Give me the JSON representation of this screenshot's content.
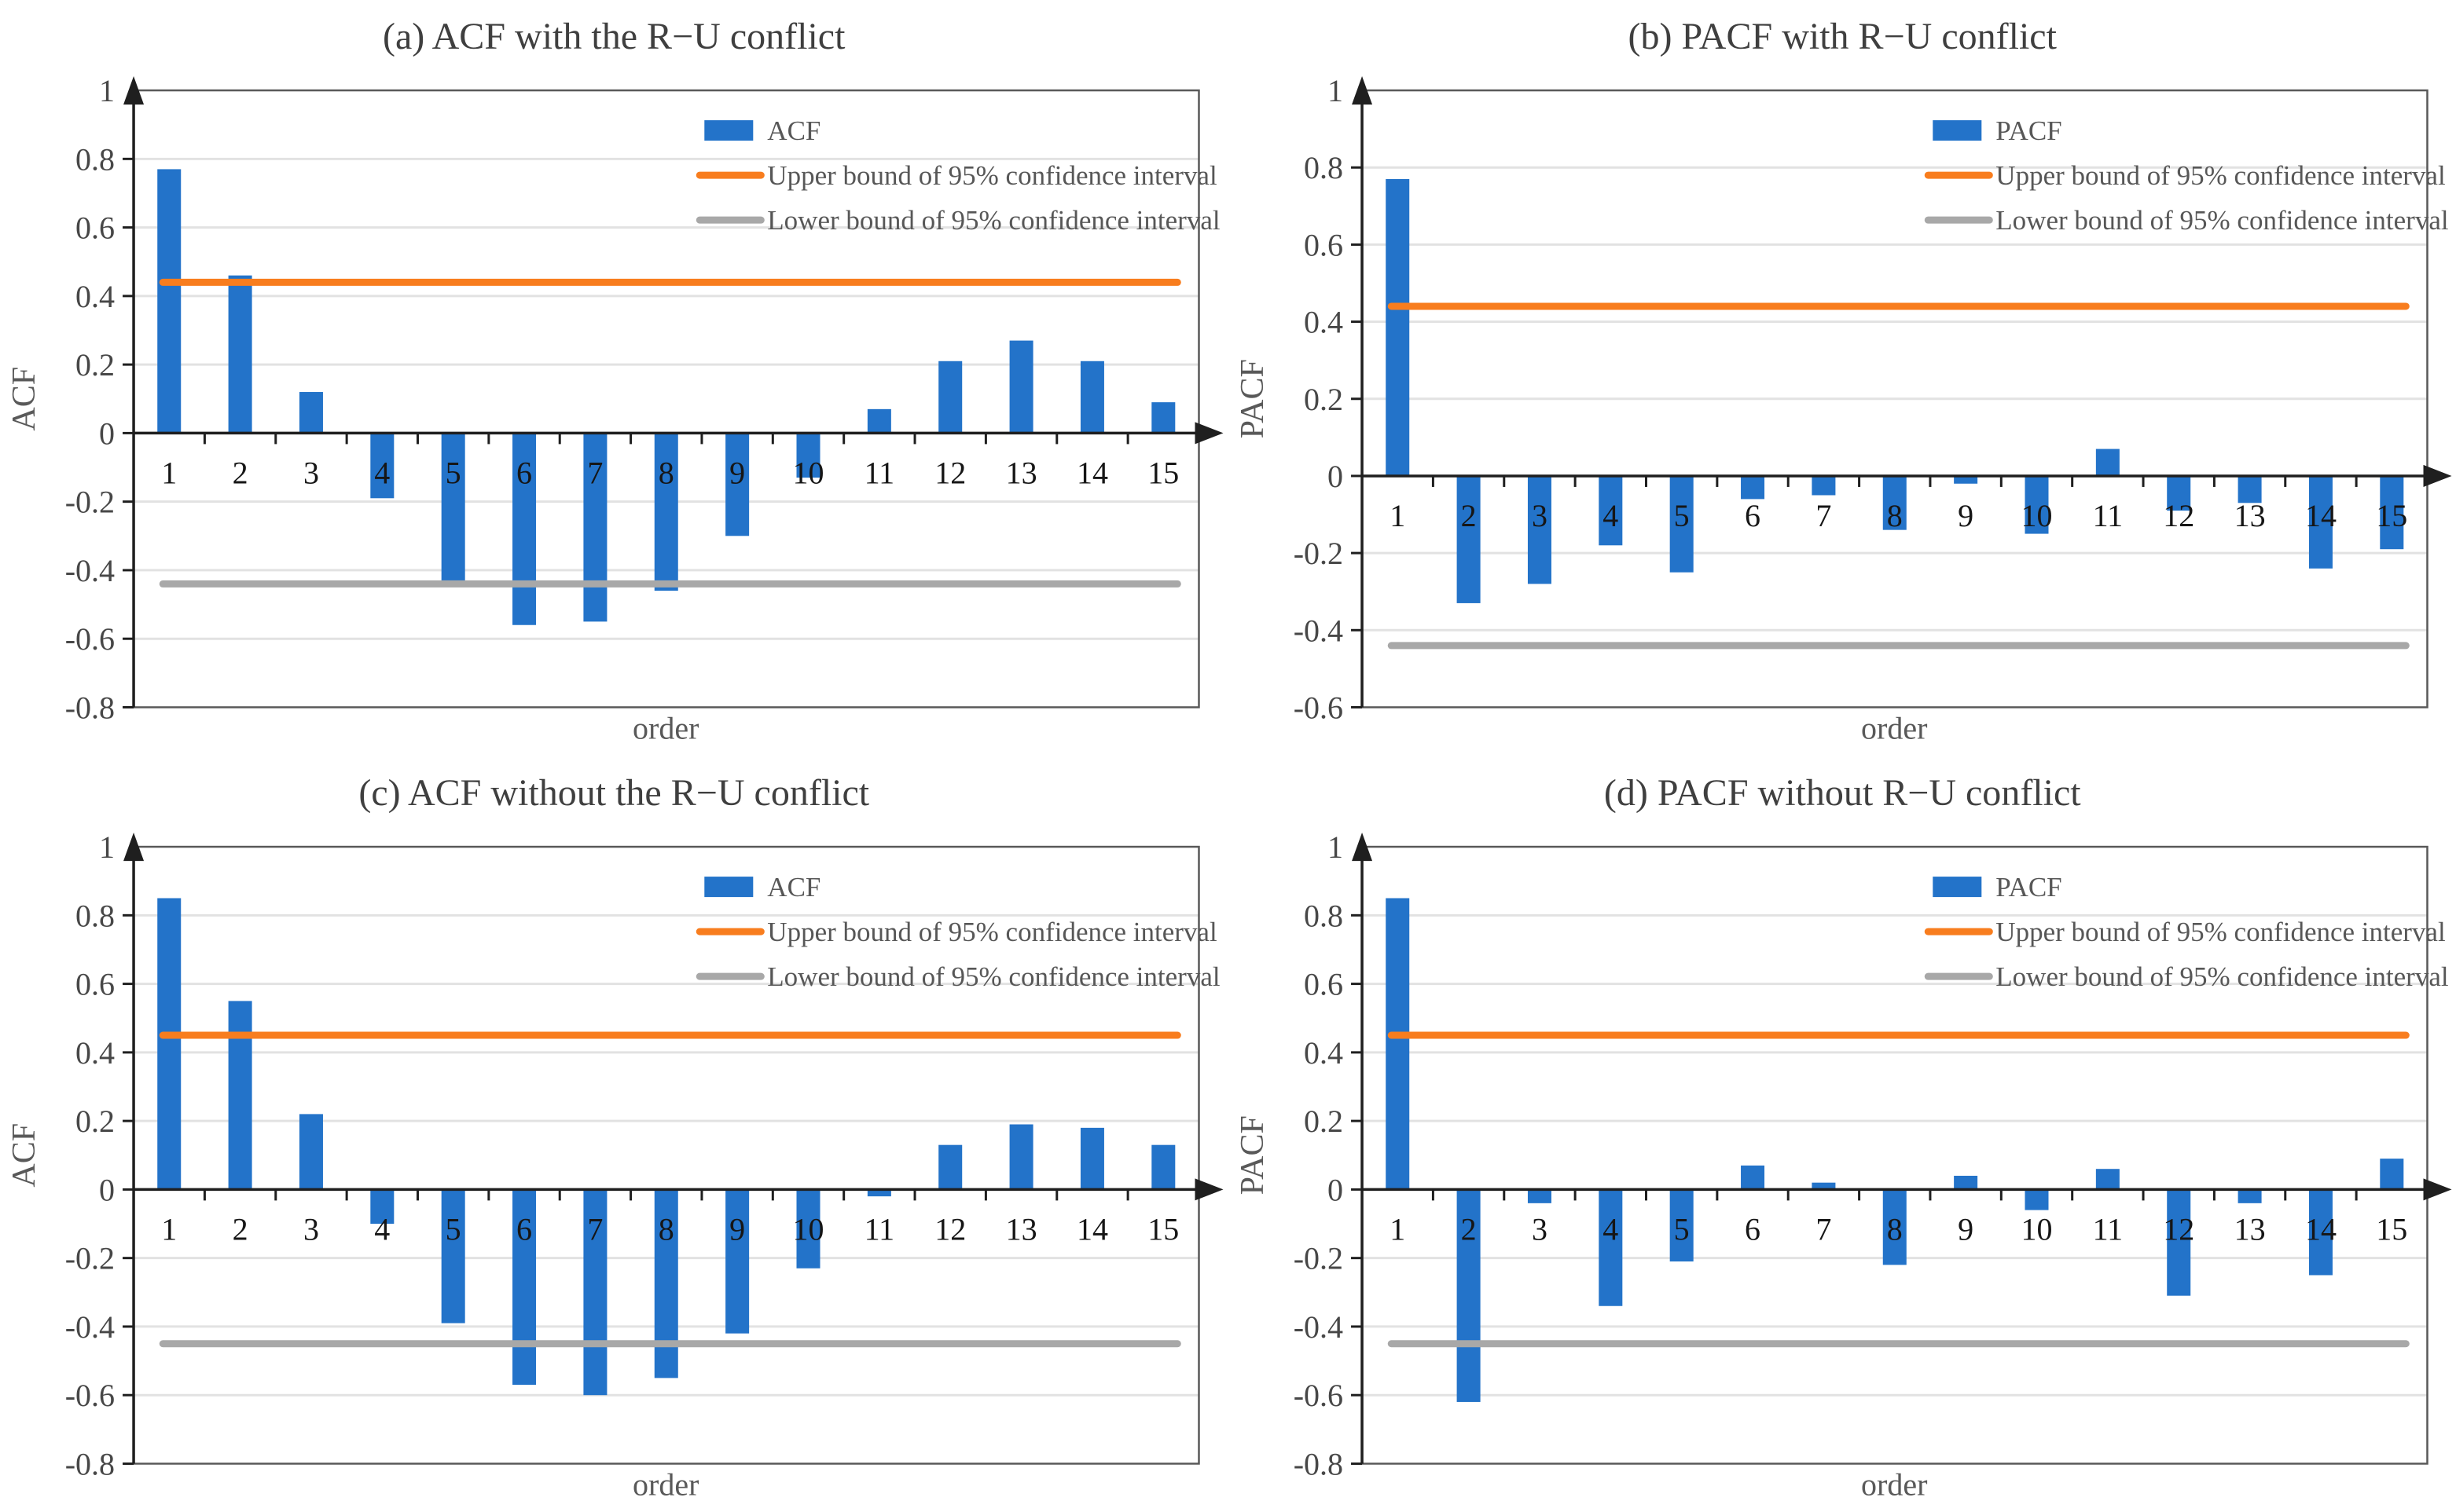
{
  "colors": {
    "bar_blue": "#2373C9",
    "upper_bound_orange": "#F87D1E",
    "lower_bound_gray": "#A8A8A8",
    "gridline": "#E2E2E2",
    "axis_black": "#1F1F1F",
    "plot_border": "#595959",
    "title_text": "#3F3F3F",
    "label_text": "#595959",
    "x_number_text": "#161616"
  },
  "chart_data": [
    {
      "type": "bar",
      "panel": "a",
      "title": "(a) ACF with the R−U conflict",
      "xlabel": "order",
      "ylabel": "ACF",
      "series_label": "ACF",
      "categories": [
        "1",
        "2",
        "3",
        "4",
        "5",
        "6",
        "7",
        "8",
        "9",
        "10",
        "11",
        "12",
        "13",
        "14",
        "15"
      ],
      "values": [
        0.77,
        0.46,
        0.12,
        -0.19,
        -0.43,
        -0.56,
        -0.55,
        -0.46,
        -0.3,
        -0.13,
        0.07,
        0.21,
        0.27,
        0.21,
        0.09
      ],
      "upper_bound": 0.44,
      "lower_bound": -0.44,
      "ylim": [
        -0.8,
        1
      ],
      "ytick_values": [
        1,
        0.8,
        0.6,
        0.4,
        0.2,
        0,
        -0.2,
        -0.4,
        -0.6,
        -0.8
      ],
      "ytick_labels": [
        "1",
        "0.8",
        "0.6",
        "0.4",
        "0.2",
        "0",
        "-0.2",
        "-0.4",
        "-0.6",
        "-0.8"
      ],
      "grid": true,
      "legend_position": "top-right",
      "legend": [
        {
          "swatch": "bar",
          "label": "ACF"
        },
        {
          "swatch": "line-orange",
          "label": "Upper bound of 95% confidence interval"
        },
        {
          "swatch": "line-gray",
          "label": "Lower bound of 95% confidence interval"
        }
      ]
    },
    {
      "type": "bar",
      "panel": "b",
      "title": "(b) PACF with R−U conflict",
      "xlabel": "order",
      "ylabel": "PACF",
      "series_label": "PACF",
      "categories": [
        "1",
        "2",
        "3",
        "4",
        "5",
        "6",
        "7",
        "8",
        "9",
        "10",
        "11",
        "12",
        "13",
        "14",
        "15"
      ],
      "values": [
        0.77,
        -0.33,
        -0.28,
        -0.18,
        -0.25,
        -0.06,
        -0.05,
        -0.14,
        -0.02,
        -0.15,
        0.07,
        -0.09,
        -0.07,
        -0.24,
        -0.19
      ],
      "upper_bound": 0.44,
      "lower_bound": -0.44,
      "ylim": [
        -0.6,
        1
      ],
      "ytick_values": [
        1,
        0.8,
        0.6,
        0.4,
        0.2,
        0,
        -0.2,
        -0.4,
        -0.6
      ],
      "ytick_labels": [
        "1",
        "0.8",
        "0.6",
        "0.4",
        "0.2",
        "0",
        "-0.2",
        "-0.4",
        "-0.6"
      ],
      "grid": true,
      "legend_position": "top-right",
      "legend": [
        {
          "swatch": "bar",
          "label": "PACF"
        },
        {
          "swatch": "line-orange",
          "label": "Upper bound of 95% confidence interval"
        },
        {
          "swatch": "line-gray",
          "label": "Lower bound of 95% confidence interval"
        }
      ]
    },
    {
      "type": "bar",
      "panel": "c",
      "title": "(c) ACF without the R−U conflict",
      "xlabel": "order",
      "ylabel": "ACF",
      "series_label": "ACF",
      "categories": [
        "1",
        "2",
        "3",
        "4",
        "5",
        "6",
        "7",
        "8",
        "9",
        "10",
        "11",
        "12",
        "13",
        "14",
        "15"
      ],
      "values": [
        0.85,
        0.55,
        0.22,
        -0.1,
        -0.39,
        -0.57,
        -0.6,
        -0.55,
        -0.42,
        -0.23,
        -0.02,
        0.13,
        0.19,
        0.18,
        0.13
      ],
      "upper_bound": 0.45,
      "lower_bound": -0.45,
      "ylim": [
        -0.8,
        1
      ],
      "ytick_values": [
        1,
        0.8,
        0.6,
        0.4,
        0.2,
        0,
        -0.2,
        -0.4,
        -0.6,
        -0.8
      ],
      "ytick_labels": [
        "1",
        "0.8",
        "0.6",
        "0.4",
        "0.2",
        "0",
        "-0.2",
        "-0.4",
        "-0.6",
        "-0.8"
      ],
      "grid": true,
      "legend_position": "top-right",
      "legend": [
        {
          "swatch": "bar",
          "label": "ACF"
        },
        {
          "swatch": "line-orange",
          "label": "Upper bound of 95% confidence interval"
        },
        {
          "swatch": "line-gray",
          "label": "Lower bound of 95% confidence interval"
        }
      ]
    },
    {
      "type": "bar",
      "panel": "d",
      "title": "(d) PACF without R−U conflict",
      "xlabel": "order",
      "ylabel": "PACF",
      "series_label": "PACF",
      "categories": [
        "1",
        "2",
        "3",
        "4",
        "5",
        "6",
        "7",
        "8",
        "9",
        "10",
        "11",
        "12",
        "13",
        "14",
        "15"
      ],
      "values": [
        0.85,
        -0.62,
        -0.04,
        -0.34,
        -0.21,
        0.07,
        0.02,
        -0.22,
        0.04,
        -0.06,
        0.06,
        -0.31,
        -0.04,
        -0.25,
        0.09
      ],
      "upper_bound": 0.45,
      "lower_bound": -0.45,
      "ylim": [
        -0.8,
        1
      ],
      "ytick_values": [
        1,
        0.8,
        0.6,
        0.4,
        0.2,
        0,
        -0.2,
        -0.4,
        -0.6,
        -0.8
      ],
      "ytick_labels": [
        "1",
        "0.8",
        "0.6",
        "0.4",
        "0.2",
        "0",
        "-0.2",
        "-0.4",
        "-0.6",
        "-0.8"
      ],
      "grid": true,
      "legend_position": "top-right",
      "legend": [
        {
          "swatch": "bar",
          "label": "PACF"
        },
        {
          "swatch": "line-orange",
          "label": "Upper bound of 95% confidence interval"
        },
        {
          "swatch": "line-gray",
          "label": "Lower bound of 95% confidence interval"
        }
      ]
    }
  ]
}
